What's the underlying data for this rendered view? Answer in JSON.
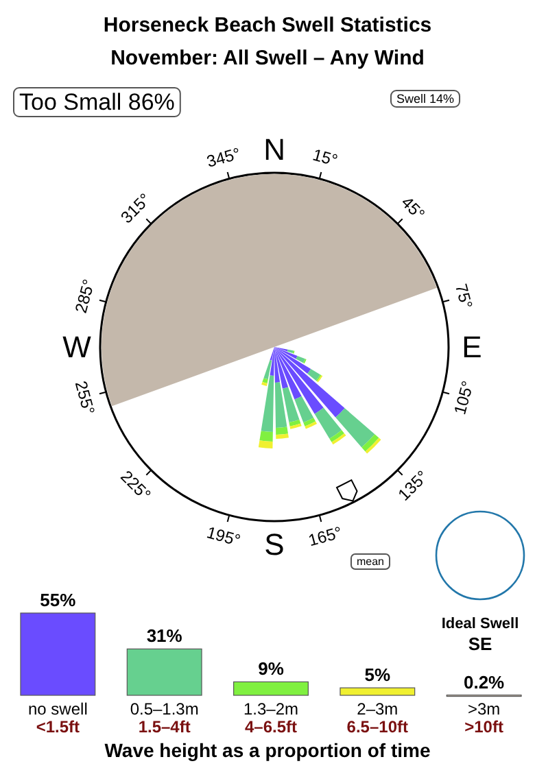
{
  "chart_data": [
    {
      "type": "other",
      "title": "Horseneck Beach Swell Statistics",
      "subtitle": "November: All Swell – Any Wind",
      "annotations": [
        "Too Small 86%",
        "Swell 14%",
        "N",
        "15°",
        "45°",
        "75°",
        "E",
        "105°",
        "135°",
        "165°",
        "S",
        "195°",
        "225°",
        "255°",
        "W",
        "285°",
        "315°",
        "345°",
        "mean",
        "Ideal Swell",
        "SE"
      ]
    },
    {
      "type": "bar",
      "categories": [
        "no swell\n<1.5ft",
        "0.5–1.3m\n1.5–4ft",
        "1.3–2m\n4–6.5ft",
        "2–3m\n6.5–10ft",
        ">3m\n>10ft"
      ],
      "values": [
        55,
        31,
        9,
        5,
        0.2
      ],
      "colors": [
        "#6a4cff",
        "#66d08f",
        "#80f040",
        "#f0f030",
        "#c4b8ab"
      ],
      "value_labels": [
        "55%",
        "31%",
        "9%",
        "5%",
        "0.2%"
      ],
      "xlabel": "Wave height as a proportion of time"
    }
  ]
}
